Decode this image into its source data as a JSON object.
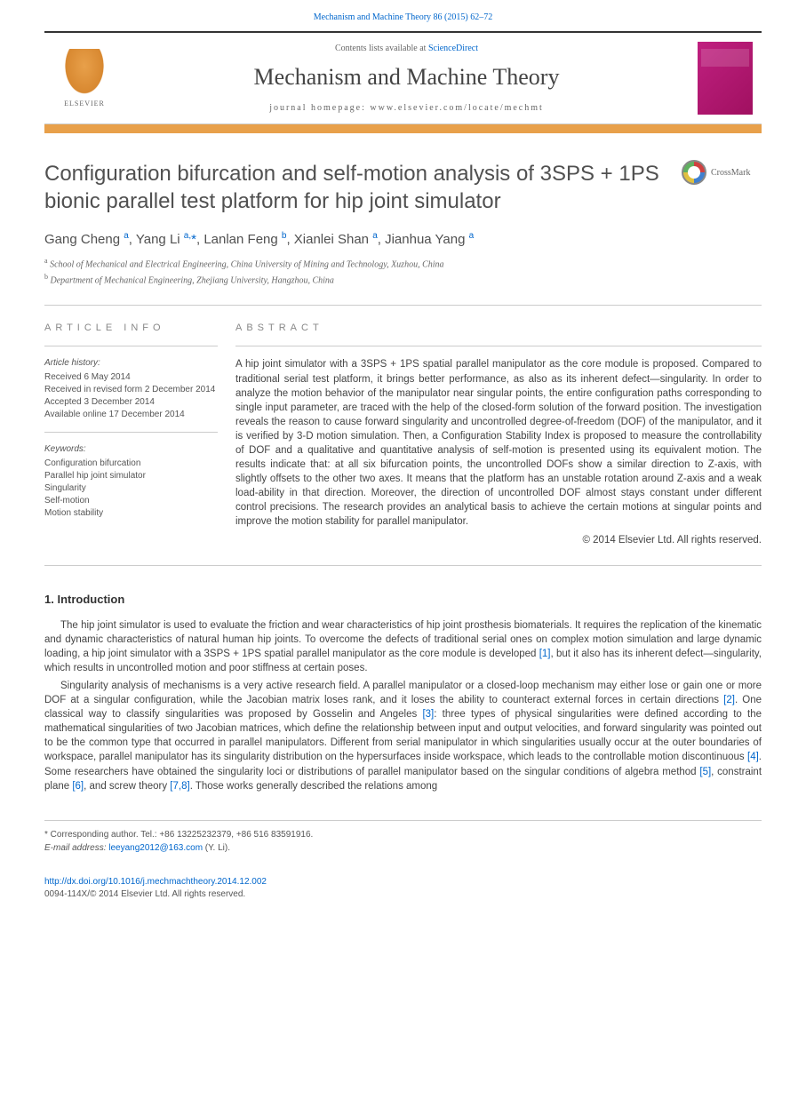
{
  "citation": "Mechanism and Machine Theory 86 (2015) 62–72",
  "header": {
    "contents_prefix": "Contents lists available at ",
    "contents_link": "ScienceDirect",
    "journal": "Mechanism and Machine Theory",
    "homepage_prefix": "journal homepage: ",
    "homepage_url": "www.elsevier.com/locate/mechmt",
    "publisher": "ELSEVIER"
  },
  "crossmark_label": "CrossMark",
  "title": "Configuration bifurcation and self-motion analysis of 3SPS + 1PS bionic parallel test platform for hip joint simulator",
  "authors_html": "Gang Cheng <sup>a</sup>, Yang Li <sup>a,</sup><span class='star'>*</span>, Lanlan Feng <sup>b</sup>, Xianlei Shan <sup>a</sup>, Jianhua Yang <sup>a</sup>",
  "affiliations": [
    {
      "sup": "a",
      "text": "School of Mechanical and Electrical Engineering, China University of Mining and Technology, Xuzhou, China"
    },
    {
      "sup": "b",
      "text": "Department of Mechanical Engineering, Zhejiang University, Hangzhou, China"
    }
  ],
  "info": {
    "label": "ARTICLE INFO",
    "history_label": "Article history:",
    "history": [
      "Received 6 May 2014",
      "Received in revised form 2 December 2014",
      "Accepted 3 December 2014",
      "Available online 17 December 2014"
    ],
    "keywords_label": "Keywords:",
    "keywords": [
      "Configuration bifurcation",
      "Parallel hip joint simulator",
      "Singularity",
      "Self-motion",
      "Motion stability"
    ]
  },
  "abstract": {
    "label": "ABSTRACT",
    "text": "A hip joint simulator with a 3SPS + 1PS spatial parallel manipulator as the core module is proposed. Compared to traditional serial test platform, it brings better performance, as also as its inherent defect—singularity. In order to analyze the motion behavior of the manipulator near singular points, the entire configuration paths corresponding to single input parameter, are traced with the help of the closed-form solution of the forward position. The investigation reveals the reason to cause forward singularity and uncontrolled degree-of-freedom (DOF) of the manipulator, and it is verified by 3-D motion simulation. Then, a Configuration Stability Index is proposed to measure the controllability of DOF and a qualitative and quantitative analysis of self-motion is presented using its equivalent motion. The results indicate that: at all six bifurcation points, the uncontrolled DOFs show a similar direction to Z-axis, with slightly offsets to the other two axes. It means that the platform has an unstable rotation around Z-axis and a weak load-ability in that direction. Moreover, the direction of uncontrolled DOF almost stays constant under different control precisions. The research provides an analytical basis to achieve the certain motions at singular points and improve the motion stability for parallel manipulator.",
    "copyright": "© 2014 Elsevier Ltd. All rights reserved."
  },
  "introduction": {
    "heading": "1. Introduction",
    "paragraphs": [
      "The hip joint simulator is used to evaluate the friction and wear characteristics of hip joint prosthesis biomaterials. It requires the replication of the kinematic and dynamic characteristics of natural human hip joints. To overcome the defects of traditional serial ones on complex motion simulation and large dynamic loading, a hip joint simulator with a 3SPS + 1PS spatial parallel manipulator as the core module is developed [1], but it also has its inherent defect—singularity, which results in uncontrolled motion and poor stiffness at certain poses.",
      "Singularity analysis of mechanisms is a very active research field. A parallel manipulator or a closed-loop mechanism may either lose or gain one or more DOF at a singular configuration, while the Jacobian matrix loses rank, and it loses the ability to counteract external forces in certain directions [2]. One classical way to classify singularities was proposed by Gosselin and Angeles [3]: three types of physical singularities were defined according to the mathematical singularities of two Jacobian matrices, which define the relationship between input and output velocities, and forward singularity was pointed out to be the common type that occurred in parallel manipulators. Different from serial manipulator in which singularities usually occur at the outer boundaries of workspace, parallel manipulator has its singularity distribution on the hypersurfaces inside workspace, which leads to the controllable motion discontinuous [4]. Some researchers have obtained the singularity loci or distributions of parallel manipulator based on the singular conditions of algebra method [5], constraint plane [6], and screw theory [7,8]. Those works generally described the relations among"
    ],
    "refs": {
      "1": "[1]",
      "2": "[2]",
      "3": "[3]",
      "4": "[4]",
      "5": "[5]",
      "6": "[6]",
      "78": "[7,8]"
    }
  },
  "footer": {
    "corresponding": "* Corresponding author. Tel.: +86 13225232379, +86 516 83591916.",
    "email_label": "E-mail address: ",
    "email": "leeyang2012@163.com",
    "email_suffix": " (Y. Li)."
  },
  "doi": {
    "url": "http://dx.doi.org/10.1016/j.mechmachtheory.2014.12.002",
    "issn_line": "0094-114X/© 2014 Elsevier Ltd. All rights reserved."
  },
  "colors": {
    "link": "#0066cc",
    "accent_bar": "#e8a04a",
    "cover": "#c02080",
    "text": "#444444",
    "rule": "#cccccc"
  }
}
